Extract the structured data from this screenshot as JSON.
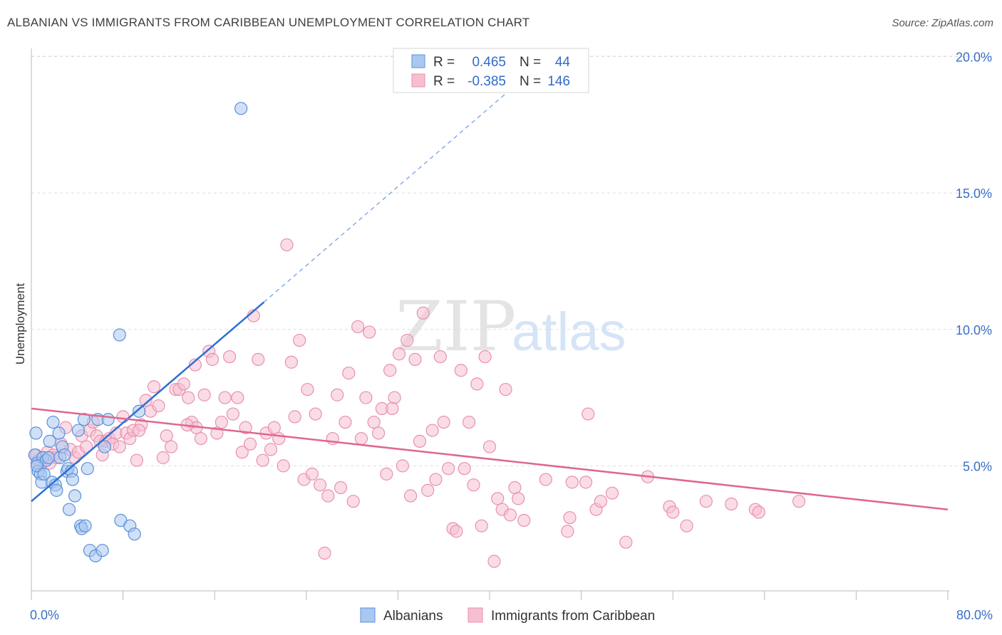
{
  "title": "ALBANIAN VS IMMIGRANTS FROM CARIBBEAN UNEMPLOYMENT CORRELATION CHART",
  "source": "Source: ZipAtlas.com",
  "watermark": {
    "zip": "ZIP",
    "atlas": "atlas"
  },
  "colors": {
    "blue_fill": "#a9c8f0",
    "blue_stroke": "#5b8fd9",
    "blue_line": "#2c6fd6",
    "pink_fill": "#f6bfd1",
    "pink_stroke": "#e891ad",
    "pink_line": "#e0668f",
    "tick_color": "#3a6fc4",
    "grid": "#dddddd"
  },
  "legend": {
    "rows": [
      {
        "r_label": "R =",
        "r_value": "0.465",
        "n_label": "N =",
        "n_value": "44"
      },
      {
        "r_label": "R =",
        "r_value": "-0.385",
        "n_label": "N =",
        "n_value": "146"
      }
    ]
  },
  "chart_data": {
    "type": "scatter",
    "title": "ALBANIAN VS IMMIGRANTS FROM CARIBBEAN UNEMPLOYMENT CORRELATION CHART",
    "xlabel": "",
    "ylabel": "Unemployment",
    "xlim": [
      0,
      80
    ],
    "ylim": [
      0,
      20.5
    ],
    "x_tick_labels": [
      "0.0%",
      "80.0%"
    ],
    "y_ticks": [
      5,
      10,
      15,
      20
    ],
    "y_tick_labels": [
      "5.0%",
      "10.0%",
      "15.0%",
      "20.0%"
    ],
    "grid": true,
    "legend_position": "bottom",
    "series": [
      {
        "name": "Albanians",
        "stats": {
          "R": 0.465,
          "N": 44
        },
        "trend": {
          "x0": 0,
          "y0": 3.7,
          "x1": 20.3,
          "y1": 11.0,
          "dashed_to": {
            "x": 43.5,
            "y": 19.4
          }
        },
        "points": [
          [
            0.4,
            6.2
          ],
          [
            0.3,
            5.4
          ],
          [
            0.5,
            5.1
          ],
          [
            0.6,
            4.8
          ],
          [
            0.8,
            4.7
          ],
          [
            1.0,
            5.3
          ],
          [
            1.3,
            5.2
          ],
          [
            1.5,
            5.3
          ],
          [
            0.9,
            4.4
          ],
          [
            1.8,
            4.4
          ],
          [
            1.6,
            5.9
          ],
          [
            1.9,
            6.6
          ],
          [
            2.1,
            4.3
          ],
          [
            2.2,
            4.1
          ],
          [
            2.4,
            6.2
          ],
          [
            2.5,
            5.3
          ],
          [
            2.7,
            5.7
          ],
          [
            2.9,
            5.4
          ],
          [
            3.1,
            4.8
          ],
          [
            3.2,
            4.9
          ],
          [
            3.3,
            3.4
          ],
          [
            3.5,
            4.8
          ],
          [
            3.6,
            4.5
          ],
          [
            3.8,
            3.9
          ],
          [
            4.1,
            6.3
          ],
          [
            4.3,
            2.8
          ],
          [
            4.4,
            2.7
          ],
          [
            4.6,
            6.7
          ],
          [
            4.7,
            2.8
          ],
          [
            4.9,
            4.9
          ],
          [
            5.1,
            1.9
          ],
          [
            5.8,
            6.7
          ],
          [
            5.6,
            1.7
          ],
          [
            6.2,
            1.9
          ],
          [
            6.4,
            5.7
          ],
          [
            6.7,
            6.7
          ],
          [
            7.7,
            9.8
          ],
          [
            7.8,
            3.0
          ],
          [
            8.6,
            2.8
          ],
          [
            9.0,
            2.5
          ],
          [
            9.4,
            7.0
          ],
          [
            18.3,
            18.1
          ],
          [
            0.5,
            5.0
          ],
          [
            1.1,
            4.7
          ]
        ]
      },
      {
        "name": "Immigrants from Caribbean",
        "stats": {
          "R": -0.385,
          "N": 146
        },
        "trend": {
          "x0": 0,
          "y0": 7.1,
          "x1": 80,
          "y1": 3.4
        },
        "points": [
          [
            0.4,
            5.4
          ],
          [
            0.6,
            5.2
          ],
          [
            0.8,
            5.0
          ],
          [
            1.1,
            5.3
          ],
          [
            1.4,
            5.5
          ],
          [
            1.6,
            5.1
          ],
          [
            1.9,
            5.4
          ],
          [
            2.2,
            5.3
          ],
          [
            2.6,
            5.8
          ],
          [
            3.0,
            6.4
          ],
          [
            3.4,
            5.6
          ],
          [
            3.8,
            5.3
          ],
          [
            4.1,
            5.5
          ],
          [
            4.4,
            6.1
          ],
          [
            4.8,
            5.7
          ],
          [
            5.1,
            6.3
          ],
          [
            5.4,
            6.6
          ],
          [
            5.7,
            6.1
          ],
          [
            6.0,
            5.9
          ],
          [
            6.2,
            5.4
          ],
          [
            6.5,
            5.9
          ],
          [
            6.8,
            6.0
          ],
          [
            7.1,
            5.8
          ],
          [
            7.4,
            6.2
          ],
          [
            7.7,
            5.7
          ],
          [
            8.0,
            6.8
          ],
          [
            8.3,
            6.2
          ],
          [
            8.6,
            6.0
          ],
          [
            8.9,
            6.3
          ],
          [
            9.2,
            5.2
          ],
          [
            9.6,
            6.5
          ],
          [
            10.0,
            7.4
          ],
          [
            10.4,
            7.0
          ],
          [
            10.7,
            7.9
          ],
          [
            11.1,
            7.2
          ],
          [
            11.5,
            5.3
          ],
          [
            11.8,
            6.1
          ],
          [
            12.2,
            5.7
          ],
          [
            12.6,
            7.8
          ],
          [
            12.9,
            7.8
          ],
          [
            13.3,
            8.0
          ],
          [
            13.7,
            7.5
          ],
          [
            14.0,
            6.6
          ],
          [
            14.4,
            6.4
          ],
          [
            14.8,
            6.0
          ],
          [
            15.1,
            7.6
          ],
          [
            15.5,
            9.2
          ],
          [
            15.8,
            8.9
          ],
          [
            16.2,
            6.2
          ],
          [
            16.6,
            6.6
          ],
          [
            16.9,
            7.5
          ],
          [
            17.3,
            9.0
          ],
          [
            17.6,
            6.9
          ],
          [
            18.0,
            7.5
          ],
          [
            18.4,
            5.5
          ],
          [
            18.7,
            6.4
          ],
          [
            19.1,
            5.8
          ],
          [
            19.4,
            10.5
          ],
          [
            19.8,
            8.9
          ],
          [
            20.2,
            5.2
          ],
          [
            20.5,
            6.2
          ],
          [
            20.9,
            5.6
          ],
          [
            21.2,
            6.4
          ],
          [
            21.6,
            6.0
          ],
          [
            22.0,
            5.0
          ],
          [
            22.3,
            13.1
          ],
          [
            22.7,
            8.8
          ],
          [
            23.0,
            6.8
          ],
          [
            23.4,
            9.6
          ],
          [
            23.8,
            4.5
          ],
          [
            24.1,
            7.8
          ],
          [
            24.5,
            4.7
          ],
          [
            24.8,
            6.9
          ],
          [
            25.2,
            4.3
          ],
          [
            25.6,
            1.8
          ],
          [
            25.9,
            3.9
          ],
          [
            26.3,
            6.0
          ],
          [
            26.7,
            7.6
          ],
          [
            27.0,
            4.2
          ],
          [
            27.4,
            6.6
          ],
          [
            27.7,
            8.4
          ],
          [
            28.1,
            3.7
          ],
          [
            28.5,
            10.1
          ],
          [
            28.8,
            6.0
          ],
          [
            29.2,
            7.5
          ],
          [
            29.5,
            9.9
          ],
          [
            29.9,
            6.6
          ],
          [
            30.3,
            6.2
          ],
          [
            30.6,
            7.1
          ],
          [
            31.0,
            4.7
          ],
          [
            31.3,
            8.5
          ],
          [
            31.7,
            7.5
          ],
          [
            32.1,
            9.1
          ],
          [
            32.4,
            5.0
          ],
          [
            32.8,
            9.6
          ],
          [
            33.1,
            3.9
          ],
          [
            33.5,
            8.9
          ],
          [
            33.9,
            5.9
          ],
          [
            34.2,
            10.6
          ],
          [
            34.6,
            4.1
          ],
          [
            35.0,
            6.3
          ],
          [
            35.3,
            4.5
          ],
          [
            35.7,
            9.0
          ],
          [
            36.0,
            6.6
          ],
          [
            36.4,
            4.9
          ],
          [
            36.8,
            2.7
          ],
          [
            37.1,
            2.6
          ],
          [
            37.5,
            8.5
          ],
          [
            37.8,
            4.9
          ],
          [
            38.2,
            6.6
          ],
          [
            38.6,
            4.3
          ],
          [
            38.9,
            8.0
          ],
          [
            39.3,
            2.8
          ],
          [
            39.6,
            9.0
          ],
          [
            40.0,
            5.7
          ],
          [
            40.4,
            1.5
          ],
          [
            40.7,
            3.8
          ],
          [
            41.1,
            3.4
          ],
          [
            41.4,
            7.8
          ],
          [
            41.8,
            3.2
          ],
          [
            42.2,
            4.2
          ],
          [
            42.5,
            3.8
          ],
          [
            43.0,
            3.0
          ],
          [
            44.9,
            4.5
          ],
          [
            46.8,
            2.6
          ],
          [
            47.0,
            3.1
          ],
          [
            47.2,
            4.4
          ],
          [
            48.4,
            4.4
          ],
          [
            48.6,
            6.9
          ],
          [
            49.3,
            3.4
          ],
          [
            49.7,
            3.7
          ],
          [
            50.7,
            4.0
          ],
          [
            51.9,
            2.2
          ],
          [
            53.8,
            4.6
          ],
          [
            55.7,
            3.5
          ],
          [
            56.0,
            3.3
          ],
          [
            57.2,
            2.8
          ],
          [
            58.9,
            3.7
          ],
          [
            61.1,
            3.6
          ],
          [
            63.2,
            3.4
          ],
          [
            63.5,
            3.3
          ],
          [
            67.0,
            3.7
          ],
          [
            9.4,
            6.3
          ],
          [
            13.6,
            6.5
          ],
          [
            14.3,
            8.7
          ],
          [
            31.5,
            7.1
          ]
        ]
      }
    ]
  }
}
